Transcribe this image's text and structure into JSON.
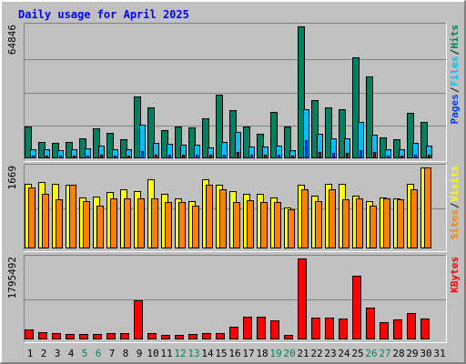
{
  "chart_data": {
    "type": "bar",
    "title": "Daily usage for April 2025",
    "days": [
      "1",
      "2",
      "3",
      "4",
      "5",
      "6",
      "7",
      "8",
      "9",
      "10",
      "11",
      "12",
      "13",
      "14",
      "15",
      "16",
      "17",
      "18",
      "19",
      "20",
      "21",
      "22",
      "23",
      "24",
      "25",
      "26",
      "27",
      "28",
      "29",
      "30",
      "31"
    ],
    "weekend_days": [
      "5",
      "6",
      "12",
      "13",
      "19",
      "20",
      "26",
      "27"
    ],
    "colors": {
      "hits": "#008060",
      "files": "#00c0ff",
      "pages": "#0040ff",
      "visits": "#ffff00",
      "sites": "#ff8000",
      "kbytes": "#ff0000",
      "title": "#0000ff",
      "weekend": "#00805c",
      "weekday": "#000080"
    },
    "panels": [
      {
        "name": "hits-files-pages",
        "ymax_label": "64846",
        "ymax": 64846,
        "legend": [
          {
            "key": "pages",
            "label": "Pages"
          },
          {
            "key": "files",
            "label": "Files"
          },
          {
            "key": "hits",
            "label": "Hits"
          }
        ],
        "series": [
          {
            "key": "hits",
            "values": [
              15500,
              8000,
              7500,
              8000,
              10000,
              14600,
              12300,
              9500,
              30500,
              25000,
              14000,
              15500,
              15000,
              19600,
              31500,
              23500,
              15800,
              12000,
              23000,
              15800,
              64846,
              28800,
              25000,
              24300,
              49700,
              40200,
              10400,
              9200,
              22500,
              17800
            ]
          },
          {
            "key": "files",
            "values": [
              4600,
              4600,
              4100,
              4600,
              4900,
              6100,
              4600,
              4600,
              16600,
              7800,
              7100,
              6700,
              6700,
              5200,
              8200,
              12800,
              6000,
              6000,
              6200,
              4100,
              24300,
              12200,
              9700,
              9700,
              17800,
              11800,
              4300,
              4300,
              7800,
              6100
            ]
          },
          {
            "key": "pages",
            "values": [
              1500,
              1500,
              1300,
              1500,
              1500,
              2000,
              1500,
              1500,
              3500,
              2000,
              1800,
              1800,
              1800,
              1600,
              2000,
              3000,
              1800,
              1800,
              1800,
              1300,
              9000,
              3000,
              2500,
              2500,
              4000,
              3000,
              1300,
              1300,
              2000,
              1800
            ]
          }
        ]
      },
      {
        "name": "visits-sites",
        "ymax_label": "1669",
        "ymax": 1669,
        "legend": [
          {
            "key": "sites",
            "label": "Sites"
          },
          {
            "key": "visits",
            "label": "Visits"
          }
        ],
        "series": [
          {
            "key": "visits",
            "values": [
              1330,
              1365,
              1330,
              1313,
              1053,
              1070,
              1157,
              1226,
              1174,
              1434,
              1122,
              1036,
              967,
              1417,
              1313,
              1174,
              1122,
              1122,
              1053,
              853,
              1313,
              1088,
              1330,
              1330,
              1088,
              967,
              1053,
              1036,
              1330,
              1669
            ]
          },
          {
            "key": "sites",
            "values": [
              1260,
              1122,
              1020,
              1313,
              967,
              880,
              1036,
              1036,
              1036,
              1036,
              950,
              950,
              880,
              1313,
              1226,
              950,
              1002,
              950,
              950,
              800,
              1226,
              967,
              1226,
              1020,
              1036,
              880,
              1036,
              1020,
              1210,
              1669
            ]
          }
        ]
      },
      {
        "name": "kbytes",
        "ymax_label": "1795492",
        "ymax": 1795492,
        "legend": [
          {
            "key": "kbytes",
            "label": "KBytes"
          }
        ],
        "series": [
          {
            "key": "kbytes",
            "values": [
              229000,
              162000,
              148000,
              121000,
              115000,
              121000,
              148000,
              135000,
              877000,
              148000,
              108000,
              108000,
              115000,
              148000,
              148000,
              290000,
              512000,
              512000,
              418000,
              94000,
              1795492,
              485000,
              485000,
              458000,
              1405000,
              714000,
              377000,
              445000,
              593000,
              458000
            ]
          }
        ]
      }
    ]
  }
}
